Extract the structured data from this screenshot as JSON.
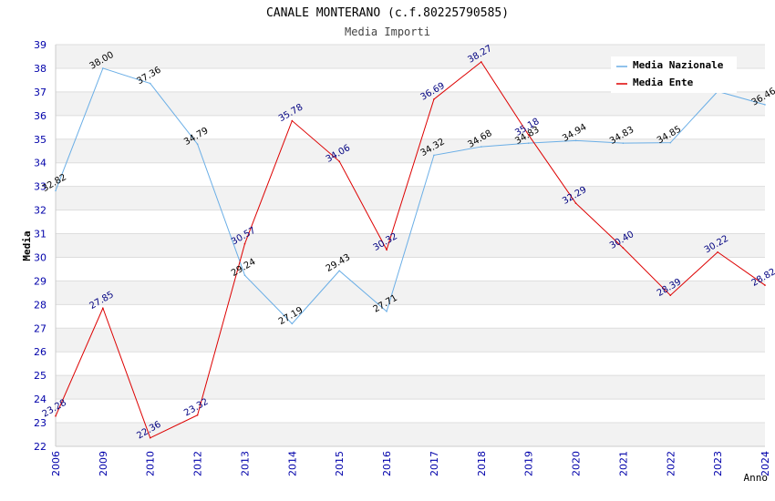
{
  "chart_data": {
    "type": "line",
    "title": "CANALE MONTERANO (c.f.80225790585)",
    "subtitle": "Media Importi",
    "xlabel": "Anno",
    "ylabel": "Media",
    "ylim": [
      22,
      39
    ],
    "yticks": [
      "22",
      "23",
      "24",
      "25",
      "26",
      "27",
      "28",
      "29",
      "30",
      "31",
      "32",
      "33",
      "34",
      "35",
      "36",
      "37",
      "38",
      "39"
    ],
    "categories": [
      "2006",
      "2009",
      "2010",
      "2012",
      "2013",
      "2014",
      "2015",
      "2016",
      "2017",
      "2018",
      "2019",
      "2020",
      "2021",
      "2022",
      "2023",
      "2024"
    ],
    "legend_position": "top-right",
    "series": [
      {
        "name": "Media Nazionale",
        "color": "#6aaee6",
        "label_color": "#000000",
        "values": [
          32.82,
          38.0,
          37.36,
          34.79,
          29.24,
          27.19,
          29.43,
          27.71,
          34.32,
          34.68,
          34.83,
          34.94,
          34.83,
          34.85,
          37.02,
          36.46
        ],
        "labels": [
          "32.82",
          "38.00",
          "37.36",
          "34.79",
          "29.24",
          "27.19",
          "29.43",
          "27.71",
          "34.32",
          "34.68",
          "34.83",
          "34.94",
          "34.83",
          "34.85",
          "",
          "36.46"
        ]
      },
      {
        "name": "Media Ente",
        "color": "#dd0000",
        "label_color": "#000080",
        "values": [
          23.28,
          27.85,
          22.36,
          23.32,
          30.57,
          35.78,
          34.06,
          30.32,
          36.69,
          38.27,
          35.18,
          32.29,
          30.4,
          28.39,
          30.22,
          28.82
        ],
        "labels": [
          "23.28",
          "27.85",
          "22.36",
          "23.32",
          "30.57",
          "35.78",
          "34.06",
          "30.32",
          "36.69",
          "38.27",
          "35.18",
          "32.29",
          "30.40",
          "28.39",
          "30.22",
          "28.82"
        ]
      }
    ]
  }
}
